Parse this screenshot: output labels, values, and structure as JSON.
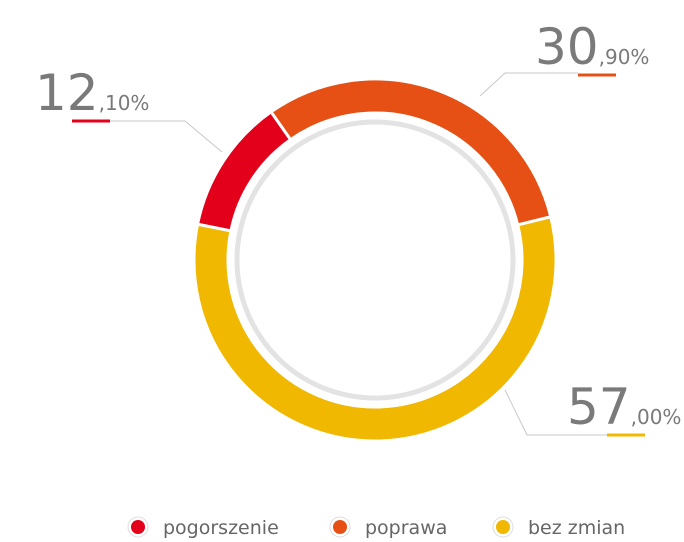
{
  "chart_data": {
    "type": "donut",
    "categories": [
      "pogorszenie",
      "poprawa",
      "bez zmian"
    ],
    "values": [
      12.1,
      30.9,
      57.0
    ],
    "value_labels": [
      "12,10%",
      "30,90%",
      "57,00%"
    ],
    "colors": [
      "#e2001a",
      "#e65014",
      "#f0b800"
    ],
    "legend": "bottom"
  }
}
